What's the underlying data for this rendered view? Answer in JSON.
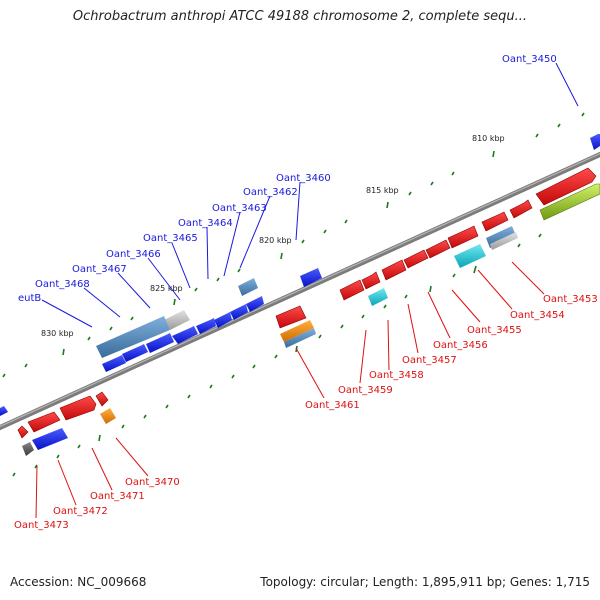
{
  "title": "Ochrobactrum anthropi ATCC 49188 chromosome 2, complete sequ...",
  "footer": {
    "accession_label": "Accession:",
    "accession": "NC_009668",
    "topology_label": "Topology:",
    "topology": "circular;",
    "length_label": "Length:",
    "length": "1,895,911 bp;",
    "genes_label": "Genes:",
    "genes": "1,715"
  },
  "colors": {
    "backbone": "#8a8a8a",
    "blue_gene": "#0a1ee8",
    "red_gene": "#ee1111",
    "steel_gene": "#4f86b8",
    "gray_gene": "#b8b8b8",
    "cyan_gene": "#11c4d4",
    "orange_gene": "#f08a10",
    "lime_gene": "#98cc22",
    "dark_gene": "#555555",
    "tick_green": "#1b7a1b",
    "label_blue": "#1a1add",
    "label_red": "#dd1111"
  },
  "scale_ticks": [
    "810 kbp",
    "815 kbp",
    "820 kbp",
    "825 kbp",
    "830 kbp"
  ],
  "top_gene_labels": [
    "Oant_3450",
    "Oant_3460",
    "Oant_3462",
    "Oant_3463",
    "Oant_3464",
    "Oant_3465",
    "Oant_3466",
    "Oant_3467",
    "Oant_3468",
    "eutB"
  ],
  "bottom_gene_labels": [
    "Oant_3453",
    "Oant_3454",
    "Oant_3455",
    "Oant_3456",
    "Oant_3457",
    "Oant_3458",
    "Oant_3459",
    "Oant_3461",
    "Oant_3470",
    "Oant_3471",
    "Oant_3472",
    "Oant_3473"
  ]
}
